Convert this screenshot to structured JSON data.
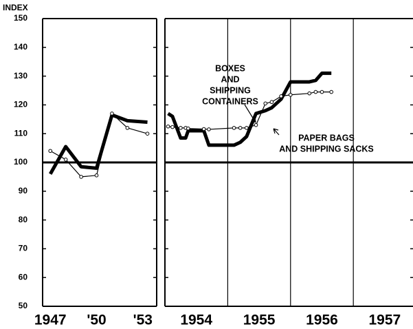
{
  "chart_data": [
    {
      "type": "line",
      "y_label": "INDEX",
      "x": [
        1947,
        1948,
        1949,
        1950,
        1951,
        1952,
        1953.3
      ],
      "series": [
        {
          "color": "#000000",
          "style": "thick",
          "values": [
            96,
            105.5,
            98.5,
            98,
            116.5,
            114.5,
            114
          ]
        },
        {
          "color": "#000000",
          "style": "thin-circles",
          "values": [
            104,
            101,
            95,
            95.5,
            117,
            112,
            110
          ]
        }
      ],
      "xlim": [
        1946.5,
        1953.9
      ],
      "xticks": [
        {
          "value": 1947,
          "label": "1947"
        },
        {
          "value": 1950,
          "label": "'50"
        },
        {
          "value": 1953,
          "label": "'53"
        }
      ],
      "ylim": [
        50,
        150
      ],
      "yticks": [
        50,
        60,
        70,
        80,
        90,
        100,
        110,
        120,
        130,
        140,
        150
      ],
      "reference": 100
    },
    {
      "type": "line",
      "x": [
        1954.05,
        1954.12,
        1954.25,
        1954.33,
        1954.37,
        1954.62,
        1954.7,
        1955.1,
        1955.2,
        1955.3,
        1955.45,
        1955.6,
        1955.7,
        1955.85,
        1956.0,
        1956.3,
        1956.4,
        1956.5,
        1956.65
      ],
      "series": [
        {
          "color": "#000000",
          "style": "thick",
          "values": [
            117,
            116,
            108.5,
            108.5,
            111,
            111,
            106,
            106,
            107,
            109,
            117,
            118,
            119,
            122,
            128,
            128,
            128.5,
            131,
            131
          ]
        },
        {
          "color": "#000000",
          "style": "thin-circles",
          "values": [
            112.5,
            112.3,
            112,
            112,
            111.8,
            111.6,
            111.5,
            112,
            112,
            112,
            113,
            120.5,
            121,
            123,
            123.5,
            124,
            124.5,
            124.5,
            124.5
          ]
        }
      ],
      "xlim": [
        1954,
        1957.95
      ],
      "xticks": [
        {
          "value": 1954.5,
          "label": "1954"
        },
        {
          "value": 1955.5,
          "label": "1955"
        },
        {
          "value": 1956.5,
          "label": "1956"
        },
        {
          "value": 1957.5,
          "label": "1957"
        }
      ],
      "vlines": [
        1955,
        1956,
        1957
      ],
      "ylim": [
        50,
        150
      ],
      "yticks": [
        50,
        60,
        70,
        80,
        90,
        100,
        110,
        120,
        130,
        140,
        150
      ],
      "reference": 100,
      "annotations": [
        [
          "BOXES",
          "AND",
          "SHIPPING",
          "CONTAINERS"
        ],
        [
          "PAPER BAGS",
          "AND SHIPPING SACKS"
        ]
      ]
    }
  ]
}
